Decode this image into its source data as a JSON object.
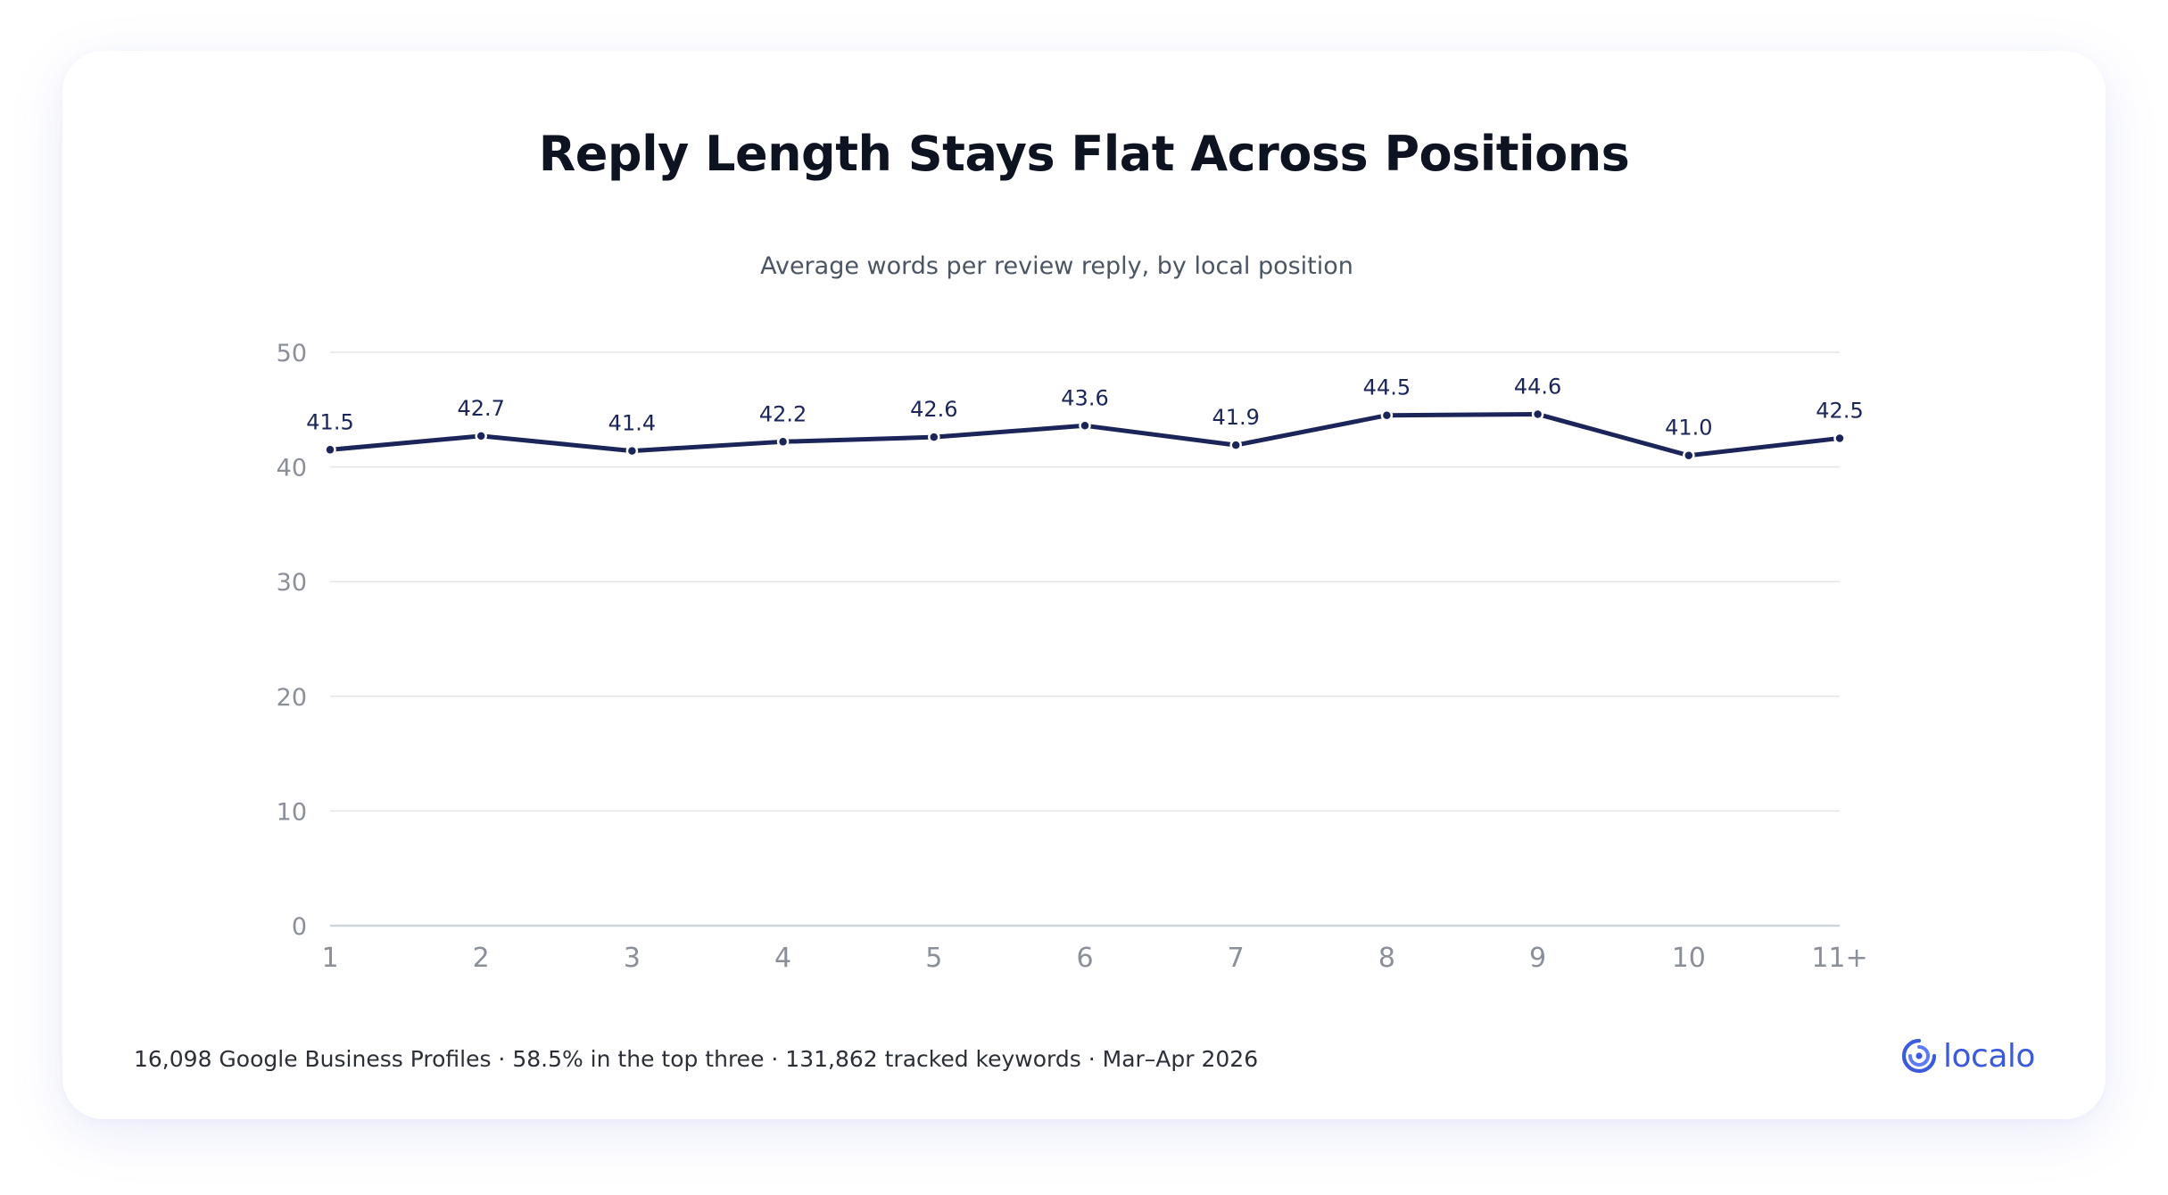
{
  "chart_data": {
    "type": "line",
    "title": "Reply Length Stays Flat Across Positions",
    "subtitle": "Average words per review reply, by local position",
    "xlabel": "",
    "ylabel": "",
    "categories": [
      "1",
      "2",
      "3",
      "4",
      "5",
      "6",
      "7",
      "8",
      "9",
      "10",
      "11+"
    ],
    "series": [
      {
        "values": [
          41.5,
          42.7,
          41.4,
          42.2,
          42.6,
          43.6,
          41.9,
          44.5,
          44.6,
          41.0,
          42.5
        ],
        "data_labels": [
          "41.5",
          "42.7",
          "41.4",
          "42.2",
          "42.6",
          "43.6",
          "41.9",
          "44.5",
          "44.6",
          "41.0",
          "42.5"
        ],
        "color": "#1b2559"
      }
    ],
    "ylim": [
      0,
      50
    ],
    "yticks": [
      0,
      10,
      20,
      30,
      40,
      50
    ],
    "ytick_labels": [
      "0",
      "10",
      "20",
      "30",
      "40",
      "50"
    ],
    "grid": true,
    "legend": "none"
  },
  "footer": {
    "note": "16,098 Google Business Profiles · 58.5% in the top three · 131,862 tracked keywords · Mar–Apr 2026"
  },
  "brand": {
    "name": "localo",
    "color": "#3b5bdb",
    "icon": "localo-logo-icon"
  },
  "colors": {
    "line": "#1b2559",
    "grid": "#e3e5ea",
    "axis": "#cfd3da",
    "tick_text": "#8a8f98",
    "title": "#0d1321"
  }
}
